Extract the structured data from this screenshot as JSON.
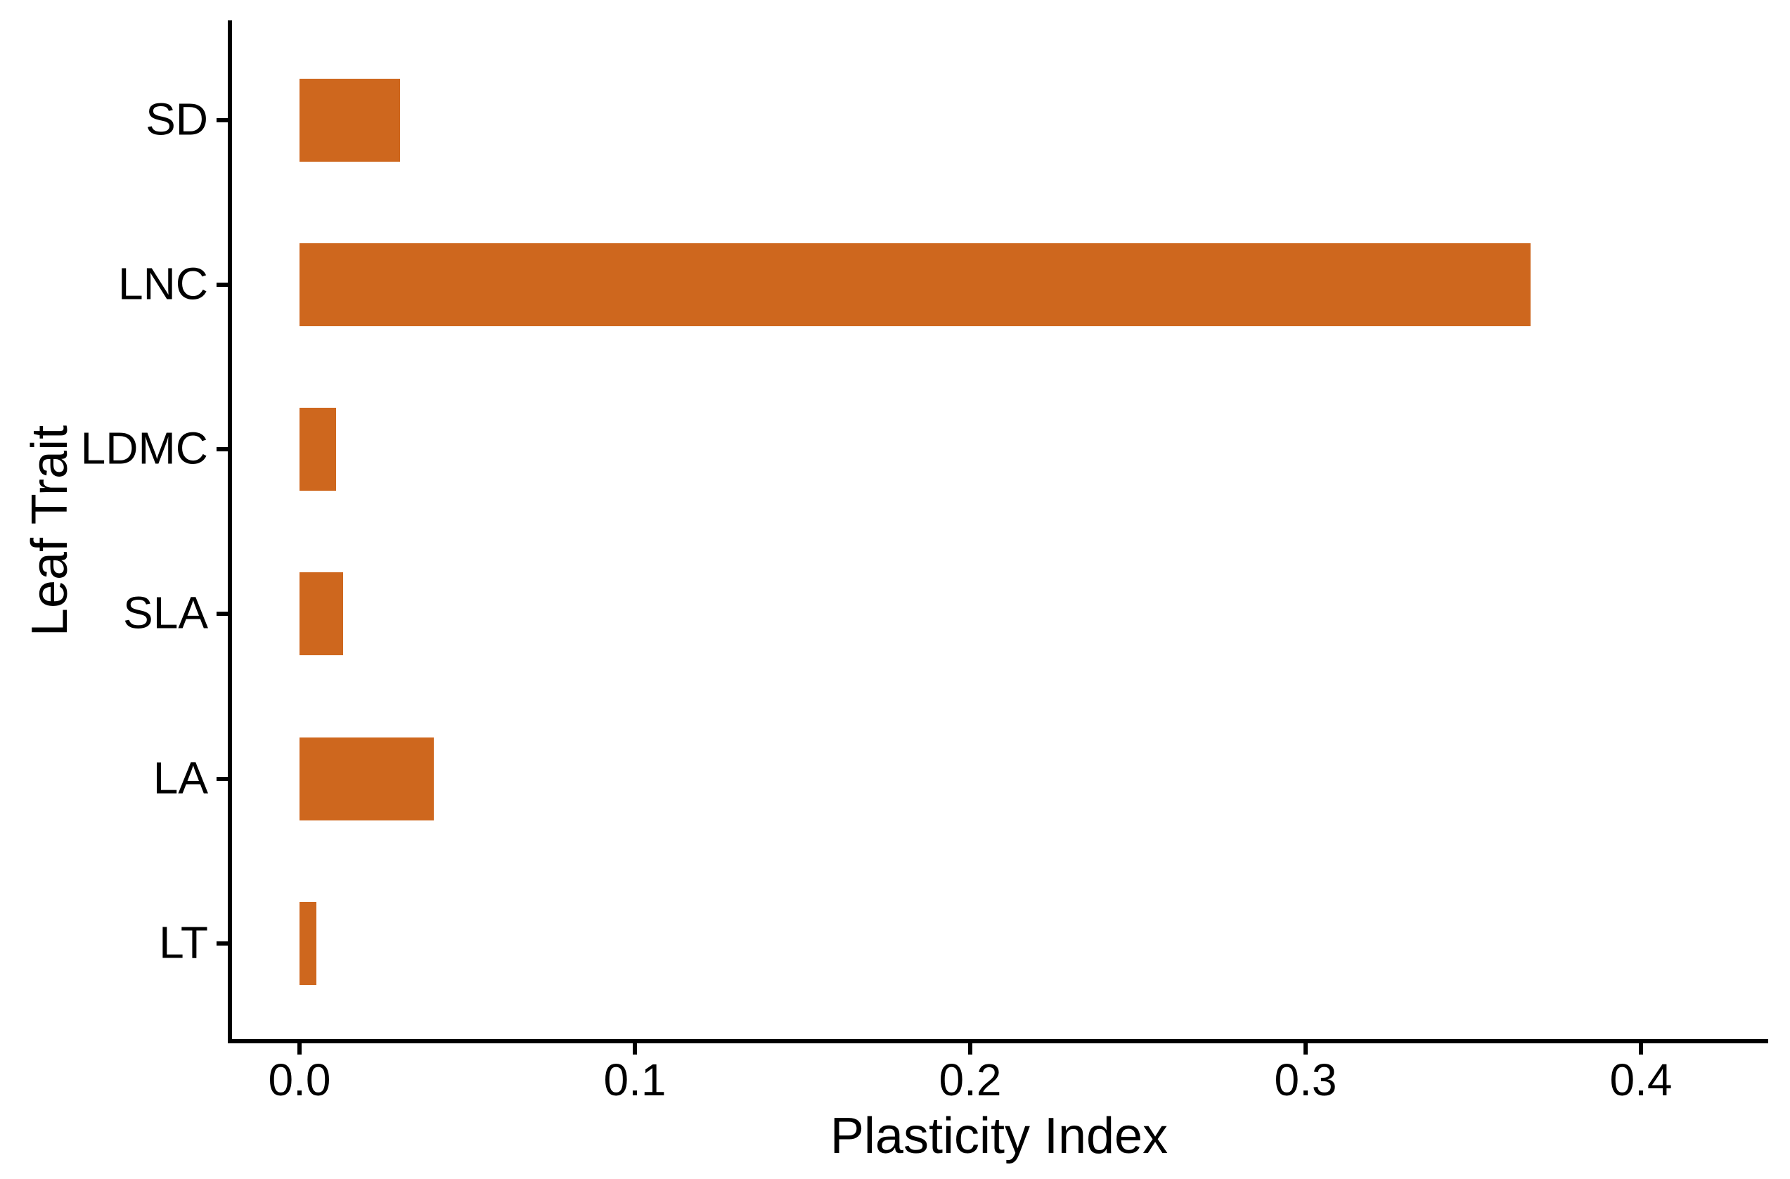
{
  "chart_data": {
    "type": "bar",
    "orientation": "horizontal",
    "xlabel": "Plasticity Index",
    "ylabel": "Leaf Trait",
    "categories": [
      "SD",
      "LNC",
      "LDMC",
      "SLA",
      "LA",
      "LT"
    ],
    "values": [
      0.03,
      0.367,
      0.011,
      0.013,
      0.04,
      0.005
    ],
    "series": [
      {
        "name": "Plasticity Index",
        "values": [
          0.03,
          0.367,
          0.011,
          0.013,
          0.04,
          0.005
        ]
      }
    ],
    "x_tick_values": [
      0.0,
      0.1,
      0.2,
      0.3,
      0.4
    ],
    "x_tick_labels": [
      "0.0",
      "0.1",
      "0.2",
      "0.3",
      "0.4"
    ],
    "xlim": [
      -0.021,
      0.438
    ],
    "grid": false,
    "legend": "none",
    "bar_color": "#CE671E",
    "axis_color": "#000000",
    "text_color": "#000000",
    "background_color": "#FFFFFF"
  }
}
